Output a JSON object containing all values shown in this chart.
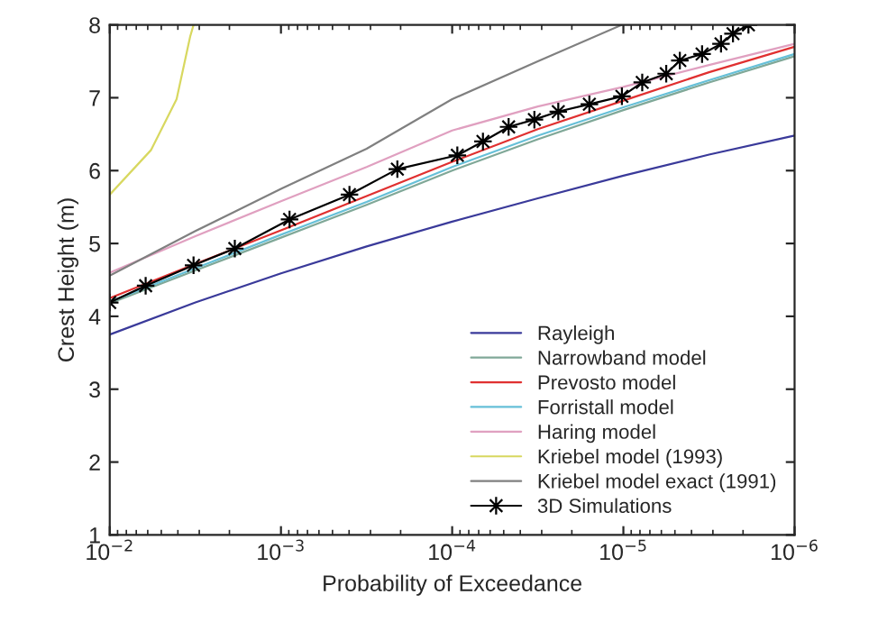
{
  "chart_data": {
    "type": "line",
    "xlabel": "Probability of Exceedance",
    "ylabel": "Crest Height (m)",
    "log": "x",
    "xlim": [
      0.01,
      1e-06
    ],
    "ylim": [
      1,
      8
    ],
    "xticks": [
      {
        "value": 0.01,
        "label": "10$^{−2}$"
      },
      {
        "value": 0.001,
        "label": "10$^{−3}$"
      },
      {
        "value": 0.0001,
        "label": "10$^{−4}$"
      },
      {
        "value": 1e-05,
        "label": "10$^{−5}$"
      },
      {
        "value": 1e-06,
        "label": "10$^{−6}$"
      }
    ],
    "yticks": [
      1,
      2,
      3,
      4,
      5,
      6,
      7,
      8
    ],
    "grid": false,
    "legend": "bottom right",
    "series": [
      {
        "name": "Rayleigh",
        "color": "#3a3a9a",
        "x": [
          0.01,
          0.00316,
          0.001,
          0.000316,
          0.0001,
          3.16e-05,
          1e-05,
          3.16e-06,
          1e-06
        ],
        "values": [
          3.75,
          4.19,
          4.59,
          4.96,
          5.3,
          5.62,
          5.93,
          6.22,
          6.48
        ]
      },
      {
        "name": "Narrowband model",
        "color": "#80a898",
        "x": [
          0.01,
          0.00316,
          0.001,
          0.000316,
          0.0001,
          3.16e-05,
          1e-05,
          3.16e-06,
          1e-06
        ],
        "values": [
          4.18,
          4.63,
          5.08,
          5.53,
          6.0,
          6.43,
          6.83,
          7.21,
          7.57
        ]
      },
      {
        "name": "Prevosto model",
        "color": "#e03030",
        "x": [
          0.01,
          0.00316,
          0.001,
          0.000316,
          0.0001,
          3.16e-05,
          1e-05,
          3.16e-06,
          1e-06
        ],
        "values": [
          4.25,
          4.72,
          5.18,
          5.65,
          6.12,
          6.57,
          6.96,
          7.35,
          7.7
        ]
      },
      {
        "name": "Forristall model",
        "color": "#66c0d8",
        "x": [
          0.01,
          0.00316,
          0.001,
          0.000316,
          0.0001,
          3.16e-05,
          1e-05,
          3.16e-06,
          1e-06
        ],
        "values": [
          4.2,
          4.66,
          5.12,
          5.57,
          6.05,
          6.48,
          6.87,
          7.24,
          7.6
        ]
      },
      {
        "name": "Haring model",
        "color": "#e0a0c0",
        "x": [
          0.01,
          0.00316,
          0.001,
          0.000316,
          0.0001,
          3.16e-05,
          1e-05,
          3.16e-06,
          1e-06
        ],
        "values": [
          4.6,
          5.1,
          5.58,
          6.05,
          6.55,
          6.88,
          7.15,
          7.45,
          7.74
        ]
      },
      {
        "name": "Kriebel model (1993)",
        "color": "#d8d860",
        "x": [
          0.01,
          0.00575,
          0.00407,
          0.00339,
          0.00324
        ],
        "values": [
          5.67,
          6.28,
          6.98,
          7.84,
          8.0
        ]
      },
      {
        "name": "Kriebel model exact (1991)",
        "color": "#808080",
        "x": [
          0.01,
          0.00316,
          0.001,
          0.000316,
          0.0001,
          3.16e-05,
          1.02e-05
        ],
        "values": [
          4.56,
          5.17,
          5.75,
          6.3,
          6.98,
          7.5,
          8.0
        ]
      },
      {
        "name": "3D Simulations",
        "color": "#000000",
        "marker": "star",
        "x": [
          0.01,
          0.00617,
          0.00324,
          0.00186,
          0.000891,
          0.000398,
          0.000209,
          9.33e-05,
          6.61e-05,
          4.68e-05,
          3.31e-05,
          2.4e-05,
          1.58e-05,
          1.02e-05,
          7.76e-06,
          5.62e-06,
          4.68e-06,
          3.47e-06,
          2.69e-06,
          2.29e-06,
          1.86e-06
        ],
        "values": [
          4.19,
          4.42,
          4.7,
          4.93,
          5.33,
          5.67,
          6.02,
          6.21,
          6.4,
          6.6,
          6.7,
          6.81,
          6.91,
          7.02,
          7.21,
          7.33,
          7.51,
          7.6,
          7.74,
          7.88,
          8.0
        ]
      }
    ]
  }
}
